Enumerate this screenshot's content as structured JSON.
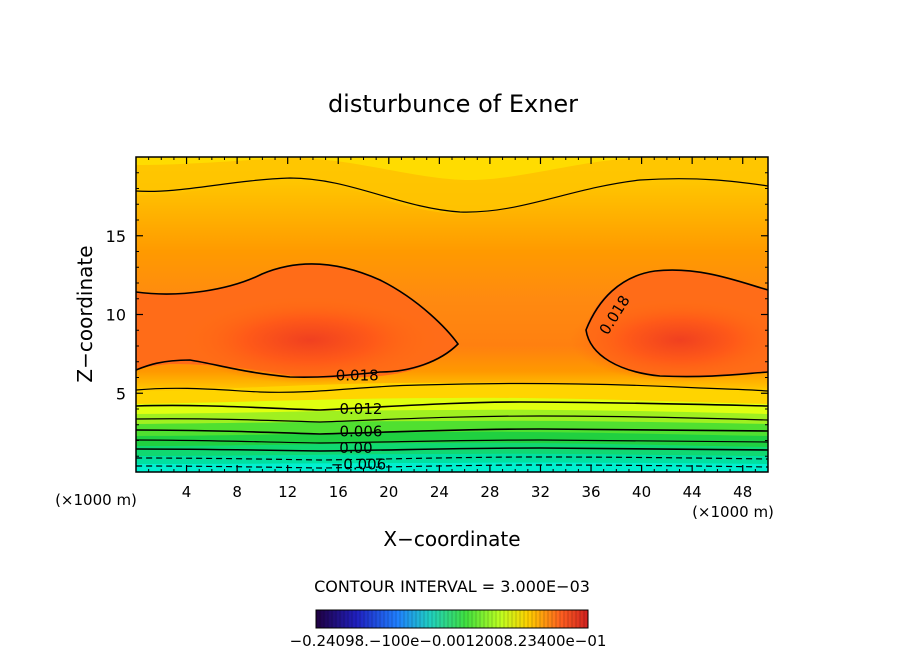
{
  "chart_data": {
    "type": "contour",
    "title": "disturbunce of Exner",
    "xlabel": "X−coordinate",
    "ylabel": "Z−coordinate",
    "x_unit": "(×1000 m)",
    "xlim": [
      0,
      50
    ],
    "ylim": [
      0,
      20
    ],
    "x_ticks": [
      "4",
      "8",
      "12",
      "16",
      "20",
      "24",
      "28",
      "32",
      "36",
      "40",
      "44",
      "48"
    ],
    "y_ticks": [
      "5",
      "10",
      "15"
    ],
    "contour_interval_label": "CONTOUR INTERVAL = 3.000E−03",
    "contour_labels": [
      {
        "text": "0.018",
        "x": 17.5,
        "z": 6.2
      },
      {
        "text": "0.018",
        "x": 37.8,
        "z": 10.0
      },
      {
        "text": "0.012",
        "x": 17.8,
        "z": 4.05
      },
      {
        "text": "0.006",
        "x": 17.8,
        "z": 2.65
      },
      {
        "text": "0.00",
        "x": 17.4,
        "z": 1.6
      },
      {
        "text": "−0.006",
        "x": 17.6,
        "z": 0.55
      }
    ],
    "colorbar_labels_text": "−0.24098.−100e−0.0012008.23400e−01",
    "colors": {
      "zmin": "#00f0d0",
      "mid": "#40ff40",
      "low_pos": "#ffff00",
      "high": "#ff6020"
    }
  }
}
